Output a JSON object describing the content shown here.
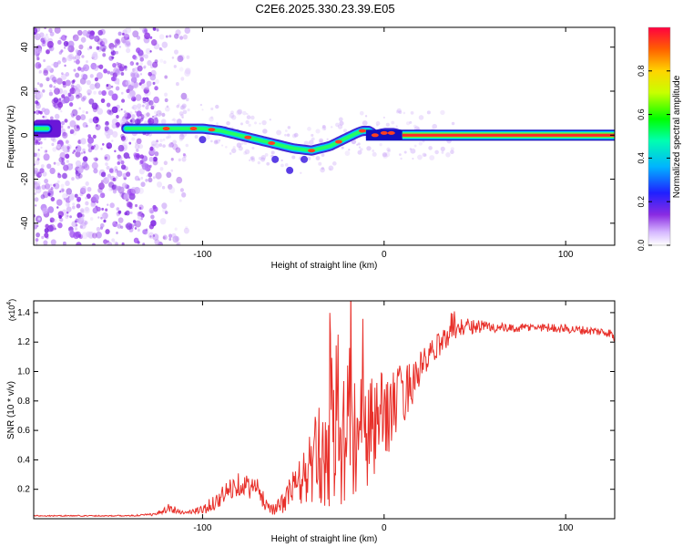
{
  "title": "C2E6.2025.330.23.39.E05",
  "chart_data": [
    {
      "type": "heatmap",
      "title": "C2E6.2025.330.23.39.E05",
      "xlabel": "Height of straight line (km)",
      "ylabel": "Frequency (Hz)",
      "xlim": [
        -193,
        127
      ],
      "ylim": [
        -50,
        49
      ],
      "xticks": [
        -100,
        0,
        100
      ],
      "yticks": [
        -40,
        -20,
        0,
        20,
        40
      ],
      "ridge": {
        "description": "dominant frequency ridge (Hz) vs height",
        "x": [
          -143,
          -130,
          -120,
          -110,
          -100,
          -90,
          -80,
          -70,
          -60,
          -50,
          -40,
          -30,
          -25,
          -20,
          -15,
          -12,
          -8,
          -5,
          0,
          5,
          10,
          30,
          60,
          90,
          127
        ],
        "y": [
          3,
          3,
          3,
          3,
          3,
          2,
          0,
          -2,
          -4,
          -6,
          -7,
          -5,
          -3,
          -1,
          1,
          2,
          2,
          0,
          1,
          1,
          0,
          0,
          0,
          0,
          0
        ]
      },
      "colorbar": {
        "label": "Normalized spectral amplitude",
        "range": [
          0,
          1
        ],
        "ticks": [
          "0.0",
          "0.2",
          "0.4",
          "0.6",
          "0.8"
        ]
      }
    },
    {
      "type": "line",
      "xlabel": "Height of straight line (km)",
      "ylabel": "SNR (10 * v/v)",
      "multiplier": "(x10",
      "multiplier_exp": "4",
      "multiplier_close": ")",
      "xlim": [
        -193,
        127
      ],
      "ylim": [
        0,
        1.48
      ],
      "xticks": [
        -100,
        0,
        100
      ],
      "yticks": [
        "0.2",
        "0.4",
        "0.6",
        "0.8",
        "1.0",
        "1.2",
        "1.4"
      ],
      "series": [
        {
          "name": "SNR",
          "color": "#e8302a",
          "x": [
            -193,
            -140,
            -125,
            -120,
            -110,
            -100,
            -90,
            -85,
            -80,
            -75,
            -70,
            -65,
            -60,
            -55,
            -50,
            -45,
            -40,
            -35,
            -30,
            -25,
            -20,
            -15,
            -10,
            -5,
            0,
            5,
            10,
            15,
            20,
            25,
            30,
            35,
            40,
            50,
            60,
            70,
            80,
            90,
            100,
            110,
            120,
            125,
            127
          ],
          "y": [
            0.02,
            0.02,
            0.03,
            0.08,
            0.04,
            0.06,
            0.14,
            0.2,
            0.24,
            0.22,
            0.2,
            0.1,
            0.06,
            0.12,
            0.22,
            0.26,
            0.36,
            0.42,
            0.48,
            0.52,
            0.56,
            0.5,
            0.54,
            0.62,
            0.7,
            0.76,
            0.84,
            0.92,
            1.02,
            1.1,
            1.18,
            1.24,
            1.3,
            1.31,
            1.3,
            1.29,
            1.3,
            1.3,
            1.29,
            1.28,
            1.27,
            1.26,
            1.22
          ],
          "noise_amplitude": [
            0.004,
            0.004,
            0.01,
            0.04,
            0.01,
            0.03,
            0.07,
            0.08,
            0.08,
            0.08,
            0.08,
            0.05,
            0.04,
            0.08,
            0.12,
            0.18,
            0.28,
            0.36,
            0.42,
            0.46,
            0.5,
            0.5,
            0.42,
            0.36,
            0.3,
            0.26,
            0.22,
            0.16,
            0.12,
            0.1,
            0.08,
            0.08,
            0.07,
            0.05,
            0.04,
            0.03,
            0.03,
            0.03,
            0.03,
            0.03,
            0.03,
            0.03,
            0.03
          ]
        }
      ]
    }
  ]
}
